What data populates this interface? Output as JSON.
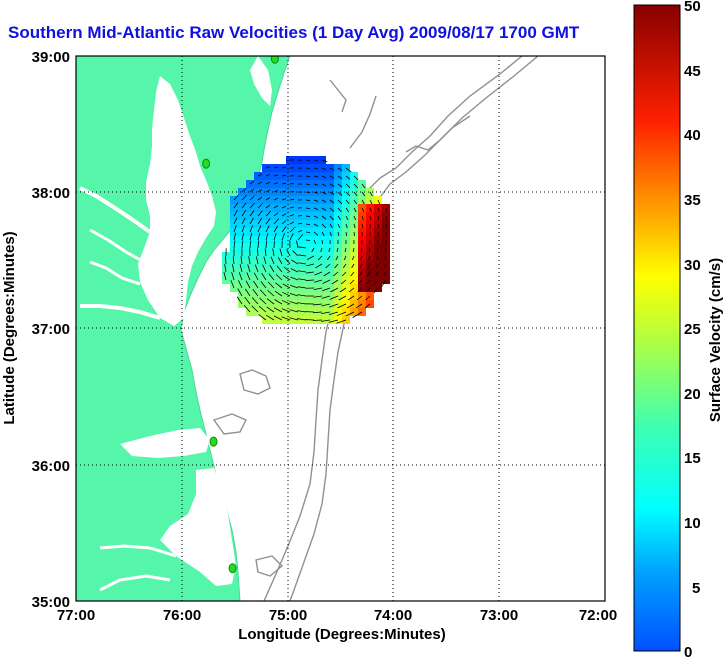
{
  "title": "Southern Mid-Atlantic Raw Velocities (1 Day Avg) 2009/08/17 1700 GMT",
  "x_axis": {
    "label": "Longitude (Degrees:Minutes)",
    "ticks": [
      "77:00",
      "76:00",
      "75:00",
      "74:00",
      "73:00",
      "72:00"
    ]
  },
  "y_axis": {
    "label": "Latitude (Degrees:Minutes)",
    "ticks": [
      "39:00",
      "38:00",
      "37:00",
      "36:00",
      "35:00"
    ]
  },
  "colorbar": {
    "label": "Surface Velocity (cm/s)",
    "ticks": [
      "50",
      "45",
      "40",
      "35",
      "30",
      "25",
      "20",
      "15",
      "10",
      "5",
      "0"
    ],
    "min": 0,
    "max": 50,
    "colormap": "jet"
  },
  "map_extent": {
    "lon": [
      -77,
      -72
    ],
    "lat": [
      35,
      39
    ]
  },
  "colors": {
    "land": "#55f5aa",
    "water": "#ffffff",
    "bathymetry": "#909090",
    "grid": "#000000",
    "title": "#1010e0",
    "station": "#22dd22"
  },
  "grid": true,
  "stations": [
    {
      "lon": -75.12,
      "lat": 38.98
    },
    {
      "lon": -75.77,
      "lat": 38.21
    },
    {
      "lon": -75.7,
      "lat": 36.17
    },
    {
      "lon": -75.52,
      "lat": 35.24
    }
  ]
}
